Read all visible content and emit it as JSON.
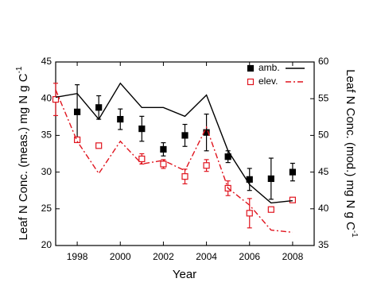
{
  "chart_data": {
    "type": "line",
    "xlabel": "Year",
    "ylabel": {
      "text": "Leaf N Conc. (meas.) mg N g C",
      "sup": "-1"
    },
    "y2label": {
      "text": "Leaf N Conc. (mod.) mg N g C",
      "sup": "-1"
    },
    "x": [
      1997,
      1998,
      1999,
      2000,
      2001,
      2002,
      2003,
      2004,
      2005,
      2006,
      2007,
      2008
    ],
    "xlim": [
      1997,
      2009
    ],
    "xticks": [
      1998,
      2000,
      2002,
      2004,
      2006,
      2008
    ],
    "ylim": [
      20,
      45
    ],
    "yticks": [
      20,
      25,
      30,
      35,
      40,
      45
    ],
    "y2lim": [
      35,
      60
    ],
    "y2ticks": [
      35,
      40,
      45,
      50,
      55,
      60
    ],
    "legend_position": "upper right",
    "legend": [
      {
        "name": "amb.",
        "color": "#000000",
        "marker": "filled-square",
        "line": "solid"
      },
      {
        "name": "elev.",
        "color": "#e0141e",
        "marker": "open-square",
        "line": "dash-dot"
      }
    ],
    "series": [
      {
        "legend": 0,
        "kind": "points",
        "axis": "y",
        "color": "#000000",
        "marker": "filled-square",
        "values": [
          null,
          38.2,
          38.8,
          37.2,
          35.9,
          33.1,
          35.0,
          35.4,
          32.1,
          29.0,
          29.1,
          30.0
        ],
        "errors": [
          null,
          3.7,
          1.6,
          1.4,
          1.7,
          0.9,
          1.5,
          2.5,
          0.8,
          1.5,
          2.8,
          1.2
        ]
      },
      {
        "legend": 1,
        "kind": "points",
        "axis": "y",
        "color": "#e0141e",
        "marker": "open-square",
        "values": [
          39.9,
          34.4,
          33.6,
          null,
          31.8,
          31.1,
          29.4,
          30.9,
          27.8,
          24.4,
          24.9,
          26.2
        ],
        "errors": [
          2.2,
          0.3,
          0.3,
          null,
          0.7,
          0.6,
          1.0,
          0.8,
          1.0,
          2.0,
          0.3,
          0.3
        ]
      },
      {
        "legend": 0,
        "kind": "line",
        "axis": "y2",
        "color": "#000000",
        "line": "solid",
        "values": [
          55.2,
          55.7,
          52.2,
          57.1,
          53.8,
          53.8,
          52.6,
          55.5,
          47.9,
          43.3,
          40.8,
          41.1
        ]
      },
      {
        "legend": 1,
        "kind": "line",
        "axis": "y2",
        "color": "#e0141e",
        "line": "dash-dot",
        "values": [
          56.2,
          49.2,
          44.8,
          49.2,
          46.1,
          46.6,
          45.2,
          51.1,
          42.8,
          40.5,
          37.1,
          36.8
        ]
      }
    ]
  }
}
